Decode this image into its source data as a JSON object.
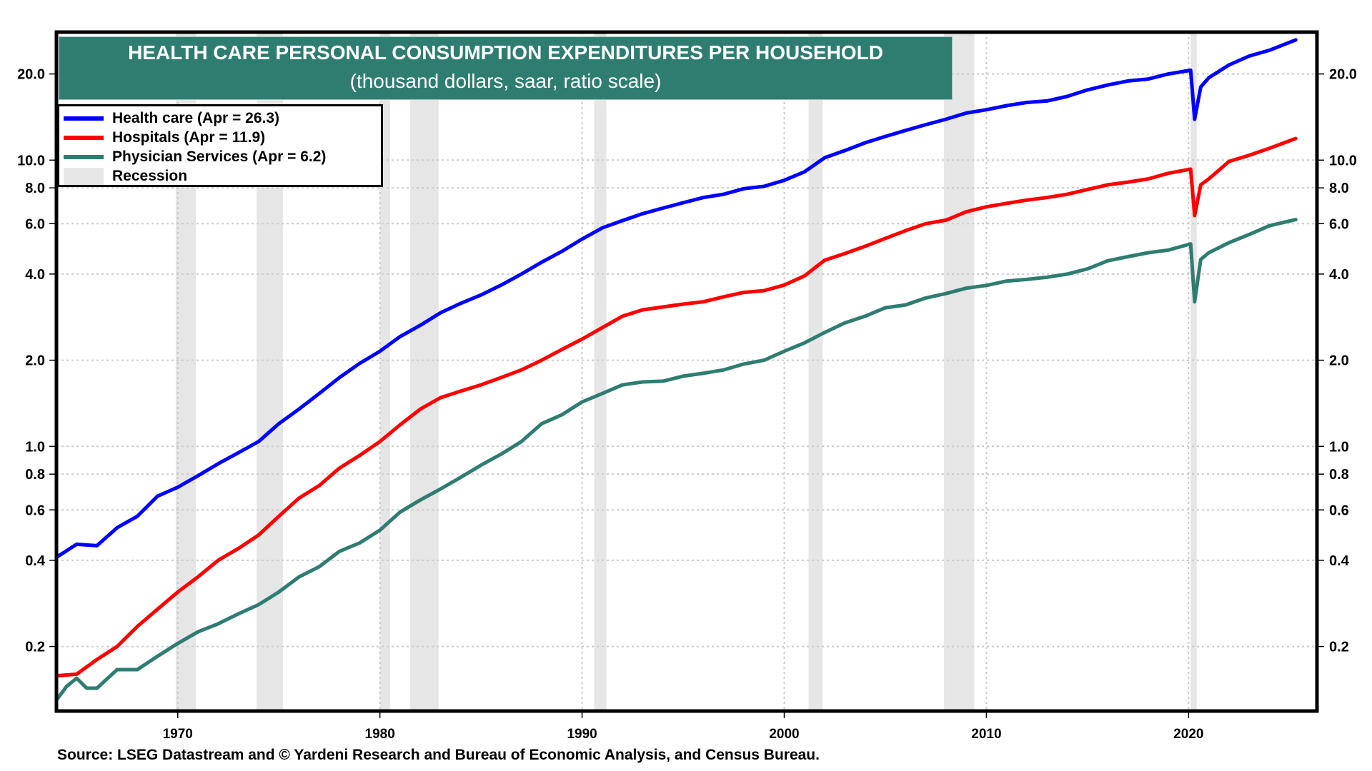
{
  "chart_data": {
    "type": "line",
    "title": "HEALTH CARE PERSONAL CONSUMPTION EXPENDITURES PER HOUSEHOLD",
    "subtitle": "(thousand dollars, saar, ratio scale)",
    "xlabel": "",
    "ylabel": "",
    "yscale": "log",
    "ylim": [
      0.119,
      28.0
    ],
    "xlim": [
      1964.0,
      2026.35
    ],
    "grid": true,
    "legend_position": "top-left",
    "y_ticks": [
      0.2,
      0.4,
      0.6,
      0.8,
      1.0,
      2.0,
      4.0,
      6.0,
      8.0,
      10.0,
      20.0
    ],
    "y_tick_labels": [
      "0.2",
      "0.4",
      "0.6",
      "0.8",
      "1.0",
      "2.0",
      "4.0",
      "6.0",
      "8.0",
      "10.0",
      "20.0"
    ],
    "x_ticks": [
      1970,
      1980,
      1990,
      2000,
      2010,
      2020
    ],
    "x_tick_labels": [
      "1970",
      "1980",
      "1990",
      "2000",
      "2010",
      "2020"
    ],
    "recessions": [
      [
        1969.9,
        1970.9
      ],
      [
        1973.9,
        1975.2
      ],
      [
        1980.0,
        1980.5
      ],
      [
        1981.5,
        1982.9
      ],
      [
        1990.6,
        1991.2
      ],
      [
        2001.2,
        2001.9
      ],
      [
        2007.9,
        2009.4
      ],
      [
        2020.1,
        2020.4
      ]
    ],
    "series": [
      {
        "name": "Health care",
        "legend_label": "Health care (Apr = 26.3)",
        "color": "#0000ff",
        "x": [
          1964,
          1965,
          1966,
          1967,
          1968,
          1969,
          1970,
          1971,
          1972,
          1973,
          1974,
          1975,
          1976,
          1977,
          1978,
          1979,
          1980,
          1981,
          1982,
          1983,
          1984,
          1985,
          1986,
          1987,
          1988,
          1989,
          1990,
          1991,
          1992,
          1993,
          1994,
          1995,
          1996,
          1997,
          1998,
          1999,
          2000,
          2001,
          2002,
          2003,
          2004,
          2005,
          2006,
          2007,
          2008,
          2009,
          2010,
          2011,
          2012,
          2013,
          2014,
          2015,
          2016,
          2017,
          2018,
          2019,
          2020.1,
          2020.3,
          2020.6,
          2021,
          2022,
          2023,
          2024,
          2025.3
        ],
        "values": [
          0.41,
          0.455,
          0.45,
          0.52,
          0.57,
          0.67,
          0.72,
          0.79,
          0.87,
          0.95,
          1.04,
          1.2,
          1.35,
          1.53,
          1.74,
          1.95,
          2.15,
          2.42,
          2.65,
          2.93,
          3.16,
          3.38,
          3.66,
          4.0,
          4.4,
          4.8,
          5.3,
          5.8,
          6.15,
          6.5,
          6.8,
          7.1,
          7.4,
          7.6,
          7.95,
          8.1,
          8.5,
          9.1,
          10.2,
          10.8,
          11.5,
          12.1,
          12.7,
          13.3,
          13.9,
          14.6,
          15.0,
          15.5,
          15.9,
          16.1,
          16.7,
          17.6,
          18.3,
          18.9,
          19.2,
          20.0,
          20.6,
          13.9,
          18.0,
          19.4,
          21.5,
          23.1,
          24.2,
          26.3
        ]
      },
      {
        "name": "Hospitals",
        "legend_label": "Hospitals (Apr = 11.9)",
        "color": "#ff0000",
        "x": [
          1964,
          1965,
          1966,
          1967,
          1968,
          1969,
          1970,
          1971,
          1972,
          1973,
          1974,
          1975,
          1976,
          1977,
          1978,
          1979,
          1980,
          1981,
          1982,
          1983,
          1984,
          1985,
          1986,
          1987,
          1988,
          1989,
          1990,
          1991,
          1992,
          1993,
          1994,
          1995,
          1996,
          1997,
          1998,
          1999,
          2000,
          2001,
          2002,
          2003,
          2004,
          2005,
          2006,
          2007,
          2008,
          2009,
          2010,
          2011,
          2012,
          2013,
          2014,
          2015,
          2016,
          2017,
          2018,
          2019,
          2020.1,
          2020.3,
          2020.6,
          2021,
          2022,
          2023,
          2024,
          2025.3
        ],
        "values": [
          0.158,
          0.16,
          0.18,
          0.2,
          0.235,
          0.27,
          0.31,
          0.35,
          0.4,
          0.44,
          0.49,
          0.57,
          0.66,
          0.73,
          0.84,
          0.93,
          1.04,
          1.19,
          1.35,
          1.48,
          1.56,
          1.64,
          1.74,
          1.85,
          2.0,
          2.18,
          2.37,
          2.6,
          2.85,
          3.0,
          3.07,
          3.14,
          3.2,
          3.33,
          3.45,
          3.5,
          3.66,
          3.94,
          4.47,
          4.72,
          5.0,
          5.33,
          5.67,
          6.0,
          6.17,
          6.6,
          6.87,
          7.06,
          7.25,
          7.4,
          7.6,
          7.9,
          8.2,
          8.38,
          8.6,
          9.0,
          9.3,
          6.4,
          8.2,
          8.6,
          9.9,
          10.4,
          11.0,
          11.9
        ]
      },
      {
        "name": "Physician Services",
        "legend_label": "Physician Services (Apr = 6.2)",
        "color": "#2e7d70",
        "x": [
          1964,
          1964.5,
          1965,
          1965.5,
          1966,
          1967,
          1968,
          1969,
          1970,
          1971,
          1972,
          1973,
          1974,
          1975,
          1976,
          1977,
          1978,
          1979,
          1980,
          1981,
          1982,
          1983,
          1984,
          1985,
          1986,
          1987,
          1988,
          1989,
          1990,
          1991,
          1992,
          1993,
          1994,
          1995,
          1996,
          1997,
          1998,
          1999,
          2000,
          2001,
          2002,
          2003,
          2004,
          2005,
          2006,
          2007,
          2008,
          2009,
          2010,
          2011,
          2012,
          2013,
          2014,
          2015,
          2016,
          2017,
          2018,
          2019,
          2020.1,
          2020.3,
          2020.6,
          2021,
          2022,
          2023,
          2024,
          2025.3
        ],
        "values": [
          0.13,
          0.145,
          0.155,
          0.143,
          0.143,
          0.166,
          0.166,
          0.185,
          0.205,
          0.225,
          0.24,
          0.26,
          0.28,
          0.31,
          0.35,
          0.38,
          0.43,
          0.46,
          0.51,
          0.59,
          0.65,
          0.71,
          0.78,
          0.86,
          0.94,
          1.04,
          1.2,
          1.29,
          1.43,
          1.53,
          1.64,
          1.68,
          1.69,
          1.76,
          1.8,
          1.85,
          1.94,
          2.0,
          2.15,
          2.3,
          2.5,
          2.7,
          2.85,
          3.05,
          3.12,
          3.3,
          3.42,
          3.57,
          3.65,
          3.78,
          3.83,
          3.9,
          4.0,
          4.17,
          4.45,
          4.6,
          4.75,
          4.85,
          5.1,
          3.2,
          4.5,
          4.75,
          5.15,
          5.5,
          5.9,
          6.2
        ]
      }
    ],
    "recession_legend_label": "Recession",
    "recession_color": "#e6e6e6",
    "source": "Source: LSEG Datastream and © Yardeni Research and Bureau of Economic Analysis, and Census Bureau."
  }
}
